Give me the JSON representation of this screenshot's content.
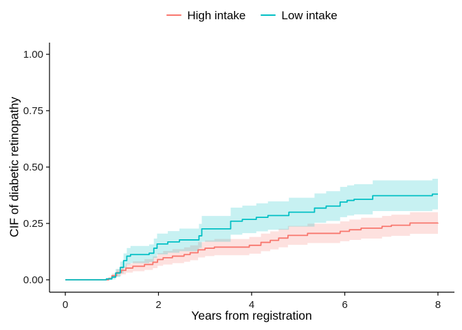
{
  "figure": {
    "background": "#ffffff"
  },
  "legend": {
    "items": [
      {
        "label": "High intake",
        "color": "#F8766D"
      },
      {
        "label": "Low intake",
        "color": "#00BFC4"
      }
    ]
  },
  "chart_data": {
    "type": "line",
    "subtype": "step_cumulative_incidence_with_confidence_bands",
    "title": "",
    "xlabel": "Years from registration",
    "ylabel": "CIF of diabetic retinopathy",
    "xlim": [
      0,
      8
    ],
    "ylim": [
      0,
      1
    ],
    "xticks": [
      0,
      2,
      4,
      6,
      8
    ],
    "xtick_labels": [
      "0",
      "2",
      "4",
      "6",
      "8"
    ],
    "yticks": [
      0,
      0.25,
      0.5,
      0.75,
      1.0
    ],
    "ytick_labels": [
      "0.00",
      "0.25",
      "0.50",
      "0.75",
      "1.00"
    ],
    "grid": false,
    "legend_position": "top-center",
    "band_opacity": 0.22,
    "axis_color": "#000000",
    "tick_label_color": "#1a1a1a",
    "series": [
      {
        "name": "High intake",
        "color": "#F8766D",
        "x": [
          0,
          0.93,
          1.0,
          1.1,
          1.2,
          1.3,
          1.45,
          1.7,
          1.88,
          1.98,
          2.1,
          2.3,
          2.55,
          2.68,
          2.85,
          3.0,
          3.2,
          3.95,
          4.2,
          4.4,
          4.58,
          4.78,
          5.2,
          5.9,
          6.1,
          6.35,
          6.8,
          7.0,
          7.4,
          8.0
        ],
        "y": [
          0,
          0.006,
          0.018,
          0.032,
          0.042,
          0.052,
          0.06,
          0.068,
          0.078,
          0.09,
          0.098,
          0.105,
          0.112,
          0.12,
          0.133,
          0.14,
          0.145,
          0.153,
          0.166,
          0.175,
          0.185,
          0.197,
          0.206,
          0.215,
          0.222,
          0.229,
          0.237,
          0.242,
          0.252,
          0.253
        ],
        "lower": [
          0,
          0.001,
          0.008,
          0.017,
          0.024,
          0.032,
          0.038,
          0.044,
          0.052,
          0.062,
          0.068,
          0.074,
          0.08,
          0.087,
          0.099,
          0.105,
          0.109,
          0.116,
          0.127,
          0.135,
          0.144,
          0.155,
          0.163,
          0.171,
          0.177,
          0.183,
          0.191,
          0.195,
          0.204,
          0.205
        ],
        "upper": [
          0,
          0.011,
          0.028,
          0.047,
          0.06,
          0.072,
          0.082,
          0.092,
          0.104,
          0.118,
          0.128,
          0.136,
          0.144,
          0.153,
          0.167,
          0.175,
          0.181,
          0.19,
          0.205,
          0.215,
          0.226,
          0.239,
          0.249,
          0.259,
          0.267,
          0.275,
          0.283,
          0.289,
          0.3,
          0.301
        ]
      },
      {
        "name": "Low intake",
        "color": "#00BFC4",
        "x": [
          0,
          0.88,
          1.0,
          1.08,
          1.18,
          1.25,
          1.32,
          1.4,
          1.8,
          1.9,
          1.97,
          2.2,
          2.45,
          2.87,
          2.93,
          3.55,
          3.8,
          4.1,
          4.35,
          4.8,
          5.35,
          5.6,
          5.9,
          6.05,
          6.2,
          6.6,
          7.88,
          8.0
        ],
        "y": [
          0,
          0.004,
          0.012,
          0.03,
          0.055,
          0.085,
          0.105,
          0.112,
          0.118,
          0.14,
          0.159,
          0.168,
          0.177,
          0.195,
          0.226,
          0.26,
          0.268,
          0.277,
          0.285,
          0.3,
          0.318,
          0.327,
          0.345,
          0.352,
          0.357,
          0.373,
          0.38,
          0.38
        ],
        "lower": [
          0,
          0,
          0.002,
          0.012,
          0.029,
          0.053,
          0.069,
          0.074,
          0.079,
          0.097,
          0.113,
          0.12,
          0.127,
          0.142,
          0.169,
          0.2,
          0.207,
          0.215,
          0.222,
          0.236,
          0.253,
          0.261,
          0.278,
          0.285,
          0.29,
          0.305,
          0.312,
          0.312
        ],
        "upper": [
          0,
          0.008,
          0.022,
          0.048,
          0.081,
          0.117,
          0.141,
          0.15,
          0.157,
          0.183,
          0.205,
          0.216,
          0.227,
          0.248,
          0.283,
          0.32,
          0.329,
          0.339,
          0.348,
          0.364,
          0.383,
          0.393,
          0.412,
          0.419,
          0.424,
          0.441,
          0.448,
          0.448
        ]
      }
    ]
  }
}
